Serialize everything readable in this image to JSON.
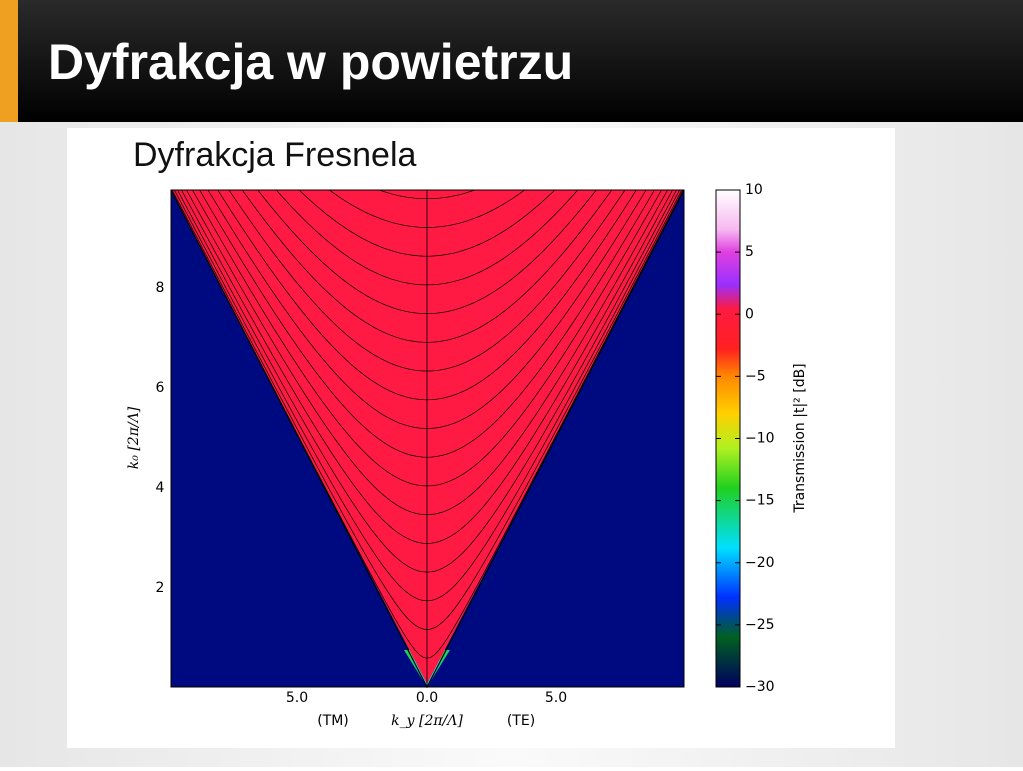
{
  "header": {
    "title": "Dyfrakcja w powietrzu"
  },
  "figure": {
    "title": "Dyfrakcja Fresnela",
    "x_ticks": [
      "5.0",
      "0.0",
      "5.0"
    ],
    "x_sublabels": [
      "(TM)",
      "(TE)"
    ],
    "x_label": "k_y [2π/Λ]",
    "y_ticks": [
      "8",
      "6",
      "4",
      "2"
    ],
    "y_label": "k₀ [2π/Λ]",
    "colorbar_ticks": [
      "10",
      "5",
      "0",
      "−5",
      "−10",
      "−15",
      "−20",
      "−25",
      "−30"
    ],
    "colorbar_label": "Transmission |t|² [dB]"
  }
}
